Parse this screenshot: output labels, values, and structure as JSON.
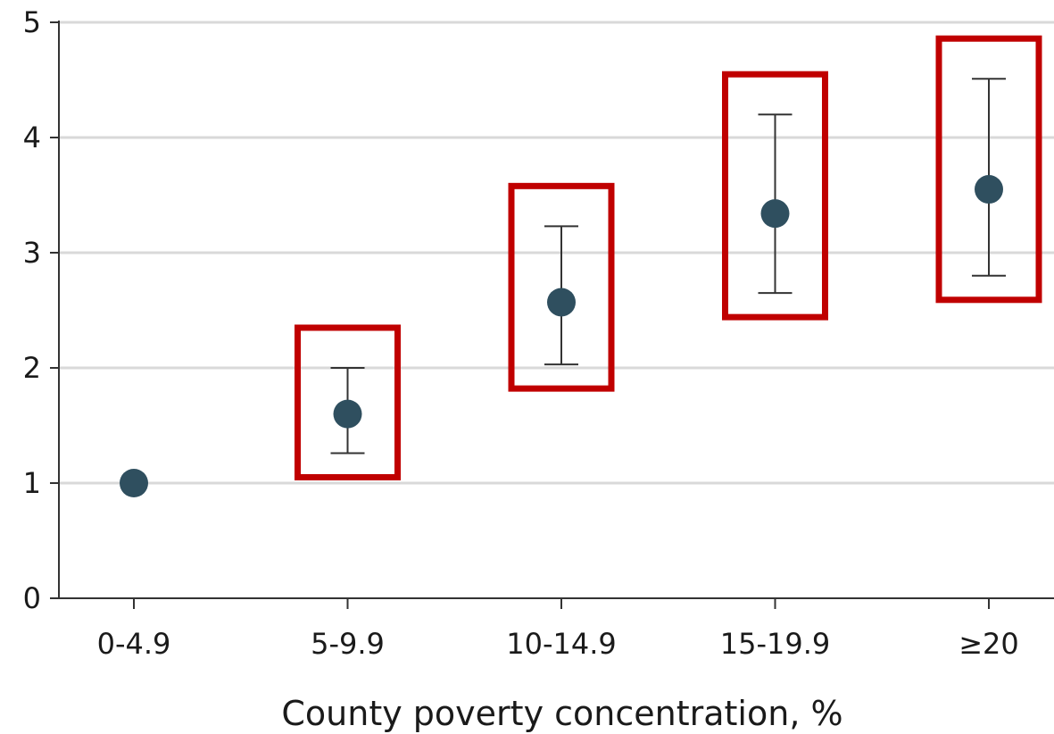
{
  "chart_data": {
    "type": "scatter",
    "xlabel": "County poverty concentration, %",
    "ylabel": "",
    "ylim": [
      0,
      5
    ],
    "yticks": [
      0,
      1,
      2,
      3,
      4,
      5
    ],
    "ytick_labels": [
      "0",
      "1",
      "2",
      "3",
      "4",
      "5"
    ],
    "categories": [
      "0-4.9",
      "5-9.9",
      "10-14.9",
      "15-19.9",
      "≥20"
    ],
    "values": [
      1.0,
      1.6,
      2.57,
      3.34,
      3.55
    ],
    "ci_lower": [
      null,
      1.26,
      2.03,
      2.65,
      2.8
    ],
    "ci_upper": [
      null,
      2.0,
      3.23,
      4.2,
      4.51
    ],
    "highlighted": [
      false,
      true,
      true,
      true,
      true
    ],
    "grid": "horizontal",
    "colors": {
      "point": "#2f4f5f",
      "errorbar": "#333333",
      "highlight": "#c00000",
      "grid": "#d9d9d9",
      "axis": "#333333"
    }
  }
}
